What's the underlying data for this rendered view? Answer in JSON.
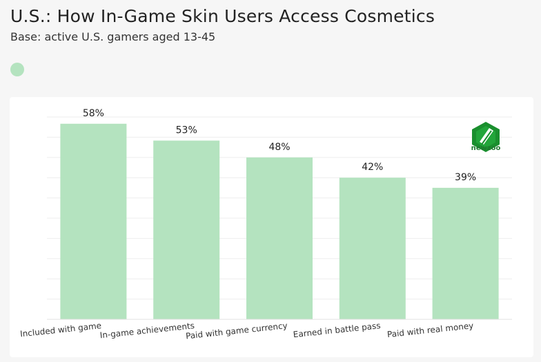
{
  "header": {
    "title": "U.S.: How In-Game Skin Users Access Cosmetics",
    "subtitle": "Base: active U.S. gamers aged 13-45"
  },
  "logo": {
    "icon": "newzoo-logo-icon",
    "text": "newzoo",
    "color": "#1a8f2e"
  },
  "colors": {
    "bar": "#b4e3bf",
    "grid": "#eeeeee"
  },
  "chart_data": {
    "type": "bar",
    "title": "U.S.: How In-Game Skin Users Access Cosmetics",
    "subtitle": "Base: active U.S. gamers aged 13-45",
    "categories": [
      "Included with game",
      "In-game achievements",
      "Paid with game currency",
      "Earned in battle pass",
      "Paid with real money"
    ],
    "values": [
      58,
      53,
      48,
      42,
      39
    ],
    "value_labels": [
      "58%",
      "53%",
      "48%",
      "42%",
      "39%"
    ],
    "unit": "%",
    "ylim": [
      0,
      60
    ],
    "xlabel": "",
    "ylabel": "",
    "grid": true,
    "legend": [
      {
        "name": "",
        "color": "#b4e3bf"
      }
    ]
  }
}
